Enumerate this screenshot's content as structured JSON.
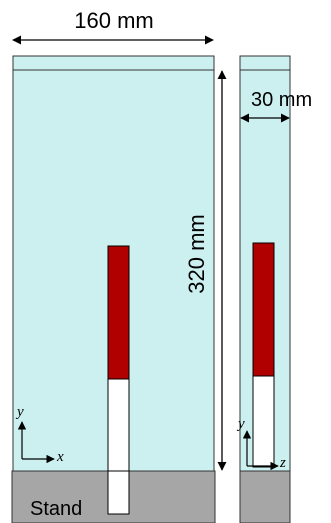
{
  "dimensions": {
    "width_label": "160 mm",
    "height_label": "320 mm",
    "depth_label": "30 mm"
  },
  "labels": {
    "stand": "Stand"
  },
  "axes": {
    "front": {
      "vertical": "y",
      "horizontal": "x"
    },
    "side": {
      "vertical": "y",
      "horizontal": "z"
    }
  },
  "colors": {
    "tank": "#ccf0f0",
    "stand": "#a6a6a6",
    "red_segment": "#b00000",
    "white_segment": "#ffffff"
  }
}
